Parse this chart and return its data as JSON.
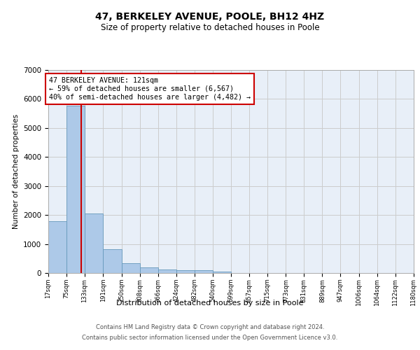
{
  "title": "47, BERKELEY AVENUE, POOLE, BH12 4HZ",
  "subtitle": "Size of property relative to detached houses in Poole",
  "xlabel": "Distribution of detached houses by size in Poole",
  "ylabel": "Number of detached properties",
  "bin_edges": [
    17,
    75,
    133,
    191,
    250,
    308,
    366,
    424,
    482,
    540,
    599,
    657,
    715,
    773,
    831,
    889,
    947,
    1006,
    1064,
    1122,
    1180
  ],
  "bar_heights": [
    1780,
    5780,
    2060,
    820,
    345,
    195,
    125,
    105,
    100,
    55,
    0,
    0,
    0,
    0,
    0,
    0,
    0,
    0,
    0,
    0
  ],
  "bar_color": "#adc9e8",
  "bar_edge_color": "#6699bb",
  "grid_color": "#cccccc",
  "bg_color": "#e8eff8",
  "property_size": 121,
  "red_line_color": "#cc0000",
  "annotation_text": "47 BERKELEY AVENUE: 121sqm\n← 59% of detached houses are smaller (6,567)\n40% of semi-detached houses are larger (4,482) →",
  "annotation_box_color": "#cc0000",
  "footer_line1": "Contains HM Land Registry data © Crown copyright and database right 2024.",
  "footer_line2": "Contains public sector information licensed under the Open Government Licence v3.0.",
  "ylim": [
    0,
    7000
  ],
  "yticks": [
    0,
    1000,
    2000,
    3000,
    4000,
    5000,
    6000,
    7000
  ],
  "title_fontsize": 10,
  "subtitle_fontsize": 8.5
}
